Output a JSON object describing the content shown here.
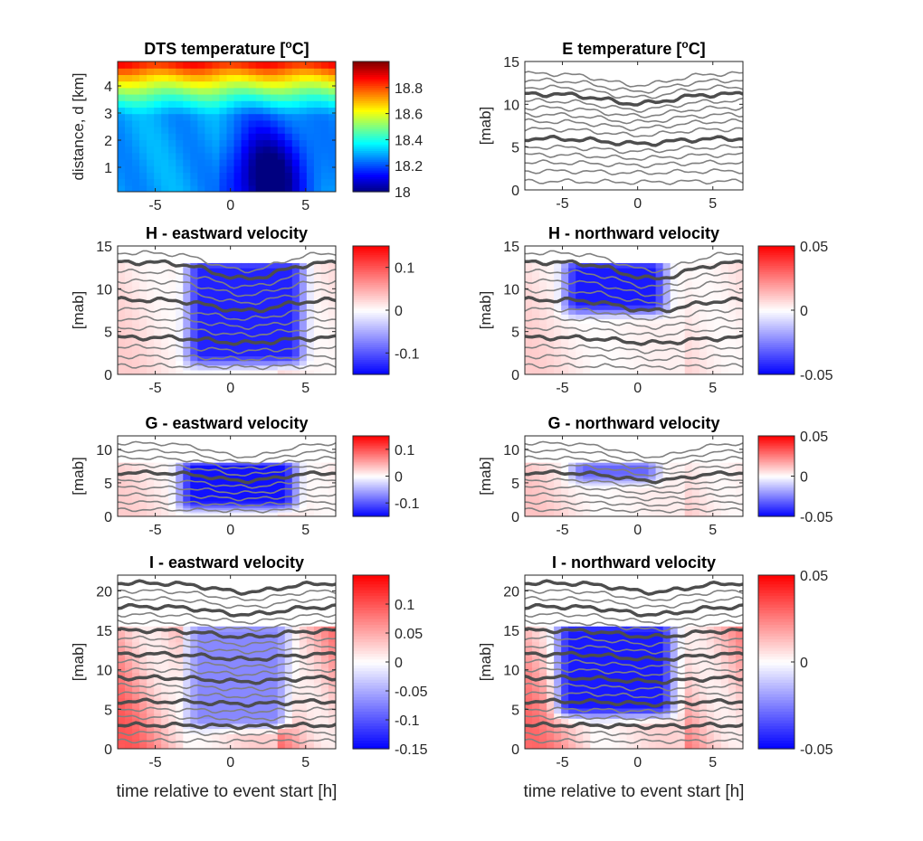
{
  "figure": {
    "shared_xlabel": "time relative to event start [h]"
  },
  "chart_data": [
    {
      "id": "dts",
      "type": "heatmap",
      "title": "DTS temperature [oC]",
      "title_main": "DTS temperature [",
      "title_sup": "o",
      "title_end": "C]",
      "ylabel": "distance, d [km]",
      "xlabel": "",
      "xlim": [
        -7.5,
        7
      ],
      "ylim": [
        0.1,
        4.9
      ],
      "xticks": [
        -5,
        0,
        5
      ],
      "yticks": [
        1,
        2,
        3,
        4
      ],
      "colormap": "jet",
      "clim": [
        18.0,
        19.0
      ],
      "colorbar_ticks": [
        18,
        18.2,
        18.4,
        18.6,
        18.8
      ],
      "colorbar_labels": [
        "18",
        "18.2",
        "18.4",
        "18.6",
        "18.8"
      ],
      "cold_anomaly": {
        "x_center": 2.5,
        "y_center": 0.6,
        "min_value": 18.0
      }
    },
    {
      "id": "e_temp",
      "type": "line",
      "title": "E temperature [oC]",
      "title_main": "E temperature [",
      "title_sup": "o",
      "title_end": "C]",
      "ylabel": "[mab]",
      "xlabel": "",
      "xlim": [
        -7.5,
        7
      ],
      "ylim": [
        0,
        15
      ],
      "xticks": [
        -5,
        0,
        5
      ],
      "yticks": [
        0,
        5,
        10,
        15
      ],
      "isotherm_levels_mab": [
        1,
        2.2,
        3.2,
        4.1,
        5,
        6,
        7.1,
        8,
        8.8,
        9.6,
        10.4,
        11.2,
        12,
        12.8,
        13.6
      ],
      "thick_isotherms_mab": [
        6,
        11.2
      ]
    },
    {
      "id": "h_east",
      "type": "heatmap",
      "title": "H - eastward velocity",
      "ylabel": "[mab]",
      "xlabel": "",
      "xlim": [
        -7.5,
        7
      ],
      "ylim": [
        0,
        15
      ],
      "xticks": [
        -5,
        0,
        5
      ],
      "yticks": [
        0,
        5,
        10,
        15
      ],
      "colormap": "blue-white-red",
      "clim": [
        -0.15,
        0.15
      ],
      "colorbar_ticks": [
        -0.1,
        0,
        0.1
      ],
      "colorbar_labels": [
        "-0.1",
        "0",
        "0.1"
      ],
      "data_top_mab": 13,
      "anomaly": {
        "x_range": [
          -2.5,
          4.5
        ],
        "y_range": [
          1,
          13
        ],
        "value": -0.13
      },
      "background_value": 0.03
    },
    {
      "id": "h_north",
      "type": "heatmap",
      "title": "H - northward velocity",
      "ylabel": "[mab]",
      "xlabel": "",
      "xlim": [
        -7.5,
        7
      ],
      "ylim": [
        0,
        15
      ],
      "xticks": [
        -5,
        0,
        5
      ],
      "yticks": [
        0,
        5,
        10,
        15
      ],
      "colormap": "blue-white-red",
      "clim": [
        -0.05,
        0.05
      ],
      "colorbar_ticks": [
        -0.05,
        0,
        0.05
      ],
      "colorbar_labels": [
        "-0.05",
        "0",
        "0.05"
      ],
      "data_top_mab": 13,
      "anomaly": {
        "x_range": [
          -4.5,
          1.5
        ],
        "y_range": [
          7,
          13
        ],
        "value": -0.045
      },
      "background_value": 0.01
    },
    {
      "id": "g_east",
      "type": "heatmap",
      "title": "G - eastward velocity",
      "ylabel": "[mab]",
      "xlabel": "",
      "xlim": [
        -7.5,
        7
      ],
      "ylim": [
        0,
        12
      ],
      "xticks": [
        -5,
        0,
        5
      ],
      "yticks": [
        0,
        5,
        10
      ],
      "colormap": "blue-white-red",
      "clim": [
        -0.15,
        0.15
      ],
      "colorbar_ticks": [
        -0.1,
        0,
        0.1
      ],
      "colorbar_labels": [
        "-0.1",
        "0",
        "0.1"
      ],
      "data_top_mab": 8,
      "anomaly": {
        "x_range": [
          -3,
          4
        ],
        "y_range": [
          1,
          8
        ],
        "value": -0.14
      },
      "background_value": 0.03
    },
    {
      "id": "g_north",
      "type": "heatmap",
      "title": "G - northward velocity",
      "ylabel": "[mab]",
      "xlabel": "",
      "xlim": [
        -7.5,
        7
      ],
      "ylim": [
        0,
        12
      ],
      "xticks": [
        -5,
        0,
        5
      ],
      "yticks": [
        0,
        5,
        10
      ],
      "colormap": "blue-white-red",
      "clim": [
        -0.05,
        0.05
      ],
      "colorbar_ticks": [
        -0.05,
        0,
        0.05
      ],
      "colorbar_labels": [
        "-0.05",
        "0",
        "0.05"
      ],
      "data_top_mab": 8,
      "anomaly": {
        "x_range": [
          -4,
          1
        ],
        "y_range": [
          5,
          8
        ],
        "value": -0.03
      },
      "background_value": 0.012
    },
    {
      "id": "i_east",
      "type": "heatmap",
      "title": "I - eastward velocity",
      "ylabel": "[mab]",
      "xlabel": "time relative to event start [h]",
      "xlim": [
        -7.5,
        7
      ],
      "ylim": [
        0,
        22
      ],
      "xticks": [
        -5,
        0,
        5
      ],
      "yticks": [
        0,
        5,
        10,
        15,
        20
      ],
      "colormap": "blue-white-red",
      "clim": [
        -0.15,
        0.15
      ],
      "colorbar_ticks": [
        -0.15,
        -0.1,
        -0.05,
        0,
        0.05,
        0.1
      ],
      "colorbar_labels": [
        "-0.15",
        "-0.1",
        "-0.05",
        "0",
        "0.05",
        "0.1"
      ],
      "data_top_mab": 15.5,
      "anomaly": {
        "x_range": [
          -2.5,
          3.5
        ],
        "y_range": [
          2.5,
          15.5
        ],
        "value": -0.07
      },
      "background_value": 0.1
    },
    {
      "id": "i_north",
      "type": "heatmap",
      "title": "I - northward velocity",
      "ylabel": "[mab]",
      "xlabel": "time relative to event start [h]",
      "xlim": [
        -7.5,
        7
      ],
      "ylim": [
        0,
        22
      ],
      "xticks": [
        -5,
        0,
        5
      ],
      "yticks": [
        0,
        5,
        10,
        15,
        20
      ],
      "colormap": "blue-white-red",
      "clim": [
        -0.05,
        0.05
      ],
      "colorbar_ticks": [
        -0.05,
        0,
        0.05
      ],
      "colorbar_labels": [
        "-0.05",
        "0",
        "0.05"
      ],
      "data_top_mab": 15.5,
      "anomaly": {
        "x_range": [
          -5,
          2
        ],
        "y_range": [
          4,
          15.5
        ],
        "value": -0.045
      },
      "background_value": 0.03
    }
  ]
}
